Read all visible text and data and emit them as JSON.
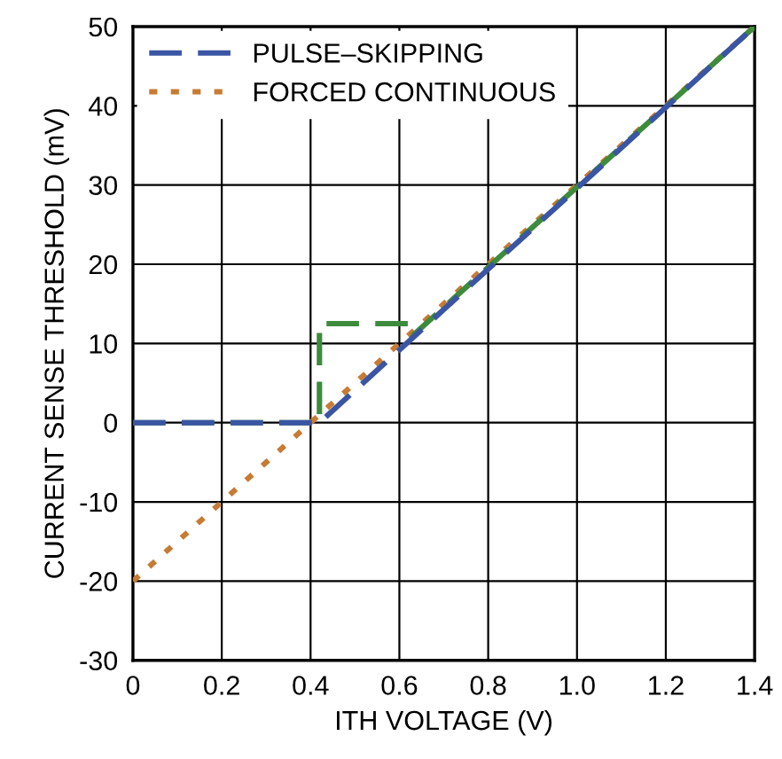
{
  "chart_data": {
    "type": "line",
    "xlabel": "ITH VOLTAGE (V)",
    "ylabel": "CURRENT SENSE THRESHOLD (mV)",
    "xlim": [
      0,
      1.4
    ],
    "xticks": [
      0,
      0.2,
      0.4,
      0.6,
      0.8,
      {
        "value": 1.0,
        "label": "1.0"
      },
      1.2,
      1.4
    ],
    "ylim": [
      -30,
      50
    ],
    "yticks": [
      -30,
      -20,
      -10,
      0,
      10,
      20,
      30,
      40,
      50
    ],
    "grid": true,
    "legend": "top left",
    "marker": "none",
    "series": [
      {
        "name": "PULSE–SKIPPING",
        "color": "#3a55a4",
        "line_style": "dashed",
        "x": [
          0,
          0.42,
          1.4
        ],
        "values": [
          0,
          0,
          50
        ]
      },
      {
        "color": "#3d8b3d",
        "line_style": "dashed",
        "x": [
          0,
          0.42,
          0.42,
          0.63,
          0.63,
          1.4
        ],
        "values": [
          0,
          0,
          12.5,
          12.5,
          11,
          50
        ]
      },
      {
        "name": "FORCED CONTINUOUS",
        "color": "#c77b33",
        "line_style": "dotted",
        "x": [
          0,
          1.4
        ],
        "values": [
          -20,
          50
        ]
      }
    ]
  }
}
